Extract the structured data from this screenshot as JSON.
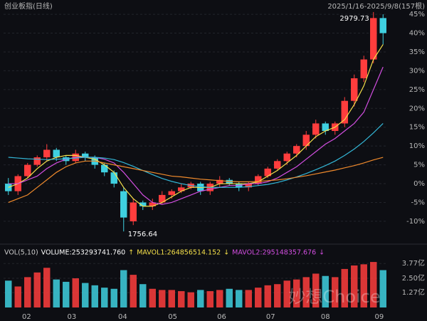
{
  "chart_data": [
    {
      "type": "candlestick",
      "title": "创业板指(日线)",
      "subtitle": "2025/1/16-2025/9/8(157根)",
      "up_color": "#ff3d3d",
      "down_color": "#3fd0e0",
      "open": [
        0,
        -2,
        2,
        5,
        7,
        9,
        7,
        6,
        8,
        7,
        5,
        3,
        -2,
        -10,
        -5,
        -6,
        -5,
        -3,
        -2,
        -1,
        0,
        -2,
        0,
        1,
        0,
        -1,
        0,
        2,
        4,
        6,
        8,
        10,
        13,
        16,
        14,
        16,
        22,
        28,
        33,
        44
      ],
      "close": [
        -2,
        2,
        5,
        7,
        9,
        7,
        6,
        8,
        7,
        5,
        3,
        0,
        -9,
        -5,
        -6,
        -5,
        -3,
        -2,
        -1,
        0,
        -2,
        0,
        1,
        0,
        -1,
        0,
        2,
        4,
        6,
        8,
        10,
        13,
        16,
        14,
        16,
        22,
        28,
        33,
        44,
        40
      ],
      "high": [
        1.5,
        2.5,
        5.5,
        7.5,
        10.5,
        9.5,
        7.5,
        9,
        8.5,
        7.5,
        5.5,
        3.5,
        -1,
        -4,
        -4.5,
        -4,
        -2,
        -1.5,
        0,
        0.5,
        0.5,
        0.5,
        2,
        1.5,
        0.5,
        0.5,
        2.5,
        4.5,
        6.5,
        8.5,
        10.5,
        14,
        17,
        16.5,
        16.5,
        23,
        29,
        34,
        45.6,
        45
      ],
      "low": [
        -3,
        -3,
        1.5,
        4.5,
        6,
        6,
        5,
        5.5,
        6,
        4,
        2,
        -1,
        -12.7,
        -11,
        -7,
        -7,
        -5.5,
        -4,
        -2.5,
        -1.5,
        -3,
        -3,
        -1,
        -0.5,
        -2,
        -2,
        -0.5,
        1.5,
        3.5,
        5,
        7,
        9,
        12,
        13,
        13,
        15,
        20.5,
        27,
        32,
        37
      ],
      "lines": [
        {
          "color": "#f5e04a",
          "values": [
            -1,
            0,
            1.5,
            4,
            6,
            7,
            7.5,
            7.5,
            7,
            6.5,
            5,
            3,
            -1,
            -4,
            -6,
            -6,
            -5,
            -3.5,
            -2,
            -1,
            -1,
            -1,
            0,
            0,
            0,
            0,
            0.5,
            2,
            3.5,
            5.5,
            7.5,
            10,
            12.5,
            14,
            15,
            17,
            21,
            26,
            33,
            37
          ]
        },
        {
          "color": "#d24ee0",
          "values": [
            0,
            0,
            1,
            2,
            4,
            5.5,
            6.5,
            7,
            7,
            7,
            6.5,
            5.5,
            3,
            0,
            -3,
            -5,
            -5.5,
            -5,
            -4,
            -3,
            -2,
            -1.5,
            -1,
            -0.5,
            -0.5,
            0,
            0,
            0.5,
            1.5,
            3,
            4.5,
            6.5,
            8.5,
            10.5,
            12,
            14,
            16,
            19,
            25,
            31
          ]
        },
        {
          "color": "#33b6d6",
          "values": [
            7,
            6.8,
            6.6,
            6.5,
            6.4,
            6.5,
            6.6,
            6.8,
            7,
            7,
            6.8,
            6.4,
            5.6,
            4.6,
            3.5,
            2.4,
            1.4,
            0.6,
            0,
            -0.5,
            -0.8,
            -1,
            -1,
            -1,
            -1,
            -0.8,
            -0.5,
            -0.2,
            0.3,
            1,
            1.8,
            2.7,
            3.7,
            4.8,
            6,
            7.5,
            9.2,
            11.2,
            13.5,
            16
          ]
        },
        {
          "color": "#f08a2c",
          "values": [
            -5,
            -4,
            -3,
            -1,
            1,
            3,
            4.5,
            5.5,
            6,
            6,
            5.5,
            5,
            4.5,
            4,
            3.5,
            3,
            2.5,
            2,
            1.8,
            1.5,
            1.2,
            1,
            0.8,
            0.6,
            0.5,
            0.5,
            0.6,
            0.8,
            1,
            1.3,
            1.7,
            2.1,
            2.6,
            3.1,
            3.6,
            4.2,
            4.8,
            5.5,
            6.3,
            7
          ]
        }
      ],
      "annotations": [
        {
          "text": "2979.73",
          "index": 38
        },
        {
          "text": "1756.64",
          "index": 12
        }
      ],
      "ylim": [
        -15.5,
        48.8
      ],
      "yticks": [
        {
          "value": 45,
          "label": "45%"
        },
        {
          "value": 40,
          "label": "40%"
        },
        {
          "value": 35,
          "label": "35%"
        },
        {
          "value": 30,
          "label": "30%"
        },
        {
          "value": 25,
          "label": "25%"
        },
        {
          "value": 20,
          "label": "20%"
        },
        {
          "value": 15,
          "label": "15%"
        },
        {
          "value": 10,
          "label": "10%"
        },
        {
          "value": 5,
          "label": "5%"
        },
        {
          "value": 0,
          "label": "0%"
        },
        {
          "value": -5,
          "label": "-5%"
        },
        {
          "value": -10,
          "label": "-10%"
        }
      ],
      "xticks": [
        {
          "value": 1.9,
          "label": "02"
        },
        {
          "value": 6.6,
          "label": "03"
        },
        {
          "value": 11.9,
          "label": "04"
        },
        {
          "value": 17.1,
          "label": "05"
        },
        {
          "value": 22.2,
          "label": "06"
        },
        {
          "value": 27.3,
          "label": "07"
        },
        {
          "value": 33,
          "label": "08"
        },
        {
          "value": 38.6,
          "label": "09"
        }
      ],
      "grid": true
    },
    {
      "type": "bar",
      "legend": [
        {
          "text": "VOL(5,10)",
          "color": "#cccccc"
        },
        {
          "text": "VOLUME:253293741.760",
          "color": "#ffffff"
        },
        {
          "text": "↑",
          "color": "#f5e04a"
        },
        {
          "text": "MAVOL1:264856514.152",
          "color": "#f5e04a"
        },
        {
          "text": "↓",
          "color": "#f5e04a"
        },
        {
          "text": "MAVOL2:295148357.676",
          "color": "#d24ee0"
        },
        {
          "text": "↓",
          "color": "#d24ee0"
        }
      ],
      "values": [
        2.3,
        1.8,
        2.6,
        3.0,
        3.4,
        2.4,
        2.2,
        2.5,
        2.1,
        1.9,
        1.7,
        1.6,
        3.2,
        2.8,
        2.0,
        1.6,
        1.5,
        1.5,
        1.4,
        1.3,
        1.5,
        1.4,
        1.5,
        1.6,
        1.5,
        1.5,
        1.7,
        1.9,
        2.0,
        2.3,
        2.4,
        2.6,
        2.9,
        2.7,
        2.6,
        3.3,
        3.6,
        3.7,
        3.9,
        3.2
      ],
      "ylim": [
        0,
        4.27
      ],
      "yticks": [
        {
          "value": 3.77,
          "label": "3.77亿"
        },
        {
          "value": 2.5,
          "label": "2.50亿"
        },
        {
          "value": 1.27,
          "label": "1.27亿"
        }
      ],
      "watermark": "妙想Choice"
    }
  ]
}
